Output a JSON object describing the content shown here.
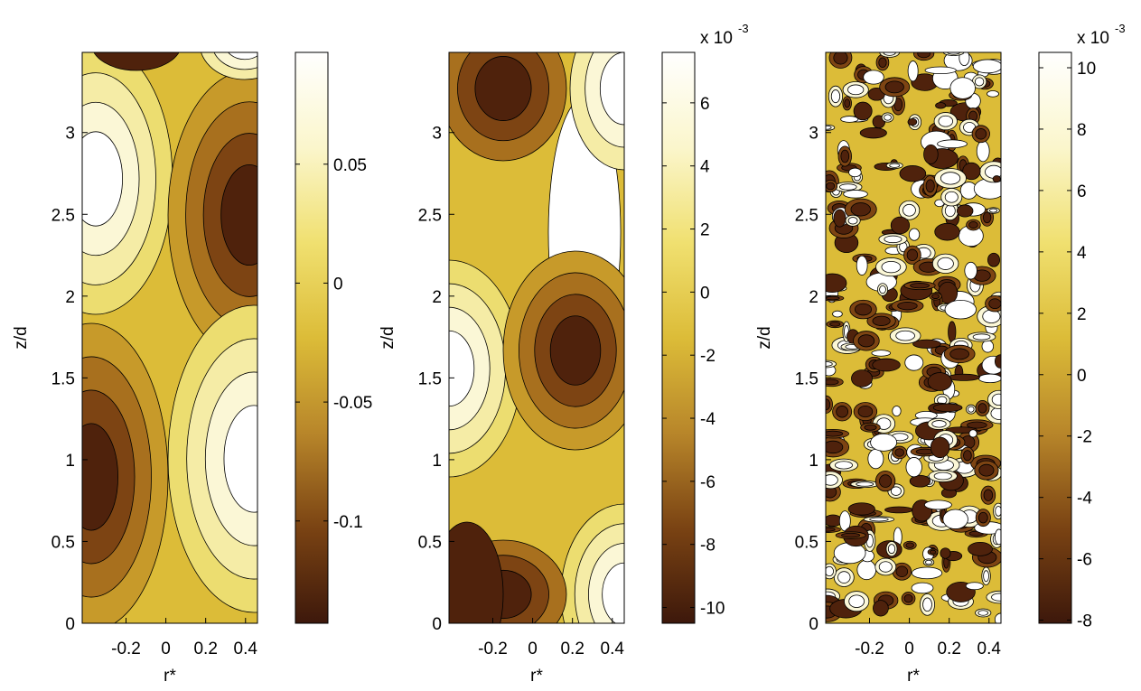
{
  "chart_data": [
    {
      "type": "contour",
      "xlabel": "r*",
      "ylabel": "z/d",
      "xlim": [
        -0.42,
        0.46
      ],
      "xticks": [
        -0.2,
        0,
        0.2,
        0.4
      ],
      "ylim": [
        0,
        3.49
      ],
      "yticks": [
        0,
        0.5,
        1,
        1.5,
        2,
        2.5,
        3
      ],
      "colormap": [
        "#3d180b",
        "#7a4313",
        "#b8862a",
        "#dcbc38",
        "#f0e070",
        "#fbf6cc",
        "#ffffff"
      ],
      "colorbar": {
        "clim": [
          -0.143,
          0.097
        ],
        "ticks": [
          -0.1,
          -0.05,
          0,
          0.05
        ]
      }
    },
    {
      "type": "contour",
      "xlabel": "r*",
      "ylabel": "z/d",
      "xlim": [
        -0.42,
        0.46
      ],
      "xticks": [
        -0.2,
        0,
        0.2,
        0.4
      ],
      "ylim": [
        0,
        3.49
      ],
      "yticks": [
        0,
        0.5,
        1,
        1.5,
        2,
        2.5,
        3
      ],
      "colormap": [
        "#3d180b",
        "#7a4313",
        "#b8862a",
        "#dcbc38",
        "#f0e070",
        "#fbf6cc",
        "#ffffff"
      ],
      "colorbar": {
        "clim": [
          -10.5,
          7.6
        ],
        "ticks": [
          -10,
          -8,
          -6,
          -4,
          -2,
          0,
          2,
          4,
          6
        ],
        "scale_label": "x 10",
        "scale_exponent": "-3"
      }
    },
    {
      "type": "contour",
      "xlabel": "r*",
      "ylabel": "z/d",
      "xlim": [
        -0.42,
        0.46
      ],
      "xticks": [
        -0.2,
        0,
        0.2,
        0.4
      ],
      "ylim": [
        0,
        3.49
      ],
      "yticks": [
        0,
        0.5,
        1,
        1.5,
        2,
        2.5,
        3
      ],
      "colormap": [
        "#3d180b",
        "#7a4313",
        "#b8862a",
        "#dcbc38",
        "#f0e070",
        "#fbf6cc",
        "#ffffff"
      ],
      "colorbar": {
        "clim": [
          -8.1,
          10.5
        ],
        "ticks": [
          -8,
          -6,
          -4,
          -2,
          0,
          2,
          4,
          6,
          8,
          10
        ],
        "scale_label": "x 10",
        "scale_exponent": "-3"
      }
    }
  ]
}
